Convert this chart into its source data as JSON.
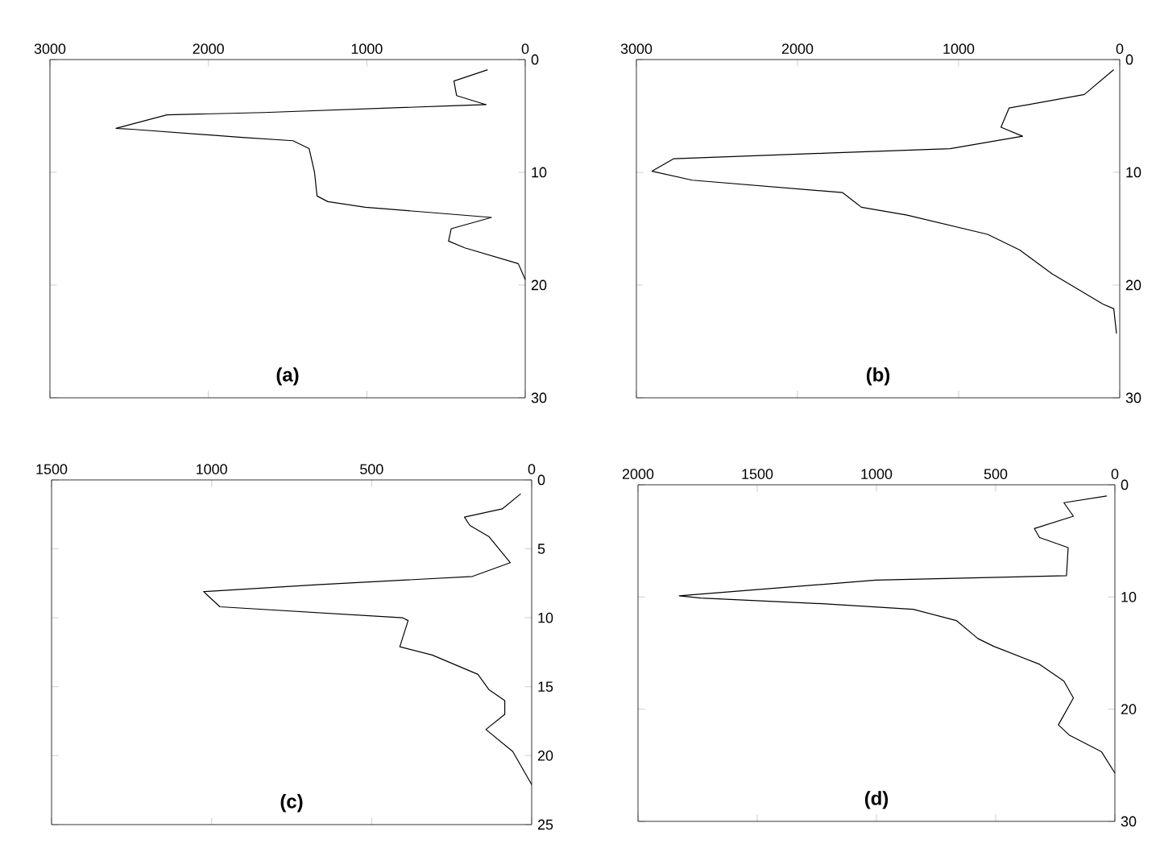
{
  "chart_data": [
    {
      "type": "line",
      "xlim": [
        3000,
        0
      ],
      "ylim": [
        30,
        0
      ],
      "xticks": [
        3000,
        2000,
        1000,
        0
      ],
      "yticks": [
        0,
        10,
        20,
        30
      ],
      "annotations": [
        "(a)"
      ],
      "series": [
        {
          "color": "#000000",
          "x": [
            237,
            450,
            433,
            247,
            467,
            1652,
            2262,
            2583,
            2465,
            1788,
            1466,
            1364,
            1330,
            1314,
            1246,
            1009,
            213,
            467,
            484,
            382,
            44,
            0
          ],
          "values": [
            0.9,
            1.9,
            3.2,
            4.0,
            4.1,
            4.7,
            4.9,
            6.1,
            6.2,
            6.9,
            7.2,
            7.9,
            10.0,
            12.1,
            12.6,
            13.1,
            14.0,
            15.0,
            16.1,
            16.7,
            18.1,
            19.5
          ]
        }
      ]
    },
    {
      "type": "line",
      "xlim": [
        3000,
        0
      ],
      "ylim": [
        30,
        0
      ],
      "xticks": [
        3000,
        2000,
        1000,
        0
      ],
      "yticks": [
        0,
        10,
        20,
        30
      ],
      "annotations": [
        "(b)"
      ],
      "series": [
        {
          "color": "#000000",
          "x": [
            37,
            220,
            687,
            737,
            603,
            1053,
            1820,
            2770,
            2903,
            2653,
            1720,
            1603,
            1320,
            820,
            620,
            420,
            103,
            37,
            20
          ],
          "values": [
            0.9,
            3.1,
            4.3,
            6.0,
            6.8,
            7.9,
            8.3,
            8.8,
            9.9,
            10.7,
            11.8,
            13.1,
            13.8,
            15.5,
            16.9,
            19.0,
            21.7,
            22.1,
            24.3
          ]
        }
      ]
    },
    {
      "type": "line",
      "xlim": [
        1500,
        0
      ],
      "ylim": [
        25,
        0
      ],
      "xticks": [
        1500,
        1000,
        500,
        0
      ],
      "yticks": [
        0,
        5,
        10,
        15,
        20,
        25
      ],
      "annotations": [
        "(c)"
      ],
      "series": [
        {
          "color": "#000000",
          "x": [
            34,
            92,
            210,
            193,
            134,
            67,
            185,
            672,
            1025,
            974,
            403,
            386,
            412,
            311,
            168,
            134,
            84,
            84,
            143,
            59,
            0
          ],
          "values": [
            1.0,
            2.1,
            2.7,
            3.3,
            4.1,
            6.0,
            7.0,
            7.6,
            8.1,
            9.2,
            10.0,
            10.2,
            12.1,
            12.7,
            14.1,
            15.2,
            16.0,
            17.0,
            18.1,
            19.7,
            22.1
          ]
        }
      ]
    },
    {
      "type": "line",
      "xlim": [
        2000,
        0
      ],
      "ylim": [
        30,
        0
      ],
      "xticks": [
        2000,
        1500,
        1000,
        500,
        0
      ],
      "yticks": [
        0,
        10,
        20,
        30
      ],
      "annotations": [
        "(d)"
      ],
      "series": [
        {
          "color": "#000000",
          "x": [
            34,
            214,
            174,
            338,
            316,
            196,
            203,
            1003,
            1827,
            1737,
            1229,
            846,
            665,
            575,
            508,
            316,
            214,
            174,
            237,
            192,
            56,
            0
          ],
          "values": [
            1.0,
            1.6,
            2.8,
            3.9,
            4.7,
            5.6,
            8.1,
            8.5,
            9.9,
            10.1,
            10.6,
            11.1,
            12.1,
            13.7,
            14.4,
            16.0,
            17.5,
            19.0,
            21.4,
            22.3,
            23.8,
            25.7
          ]
        }
      ]
    }
  ]
}
